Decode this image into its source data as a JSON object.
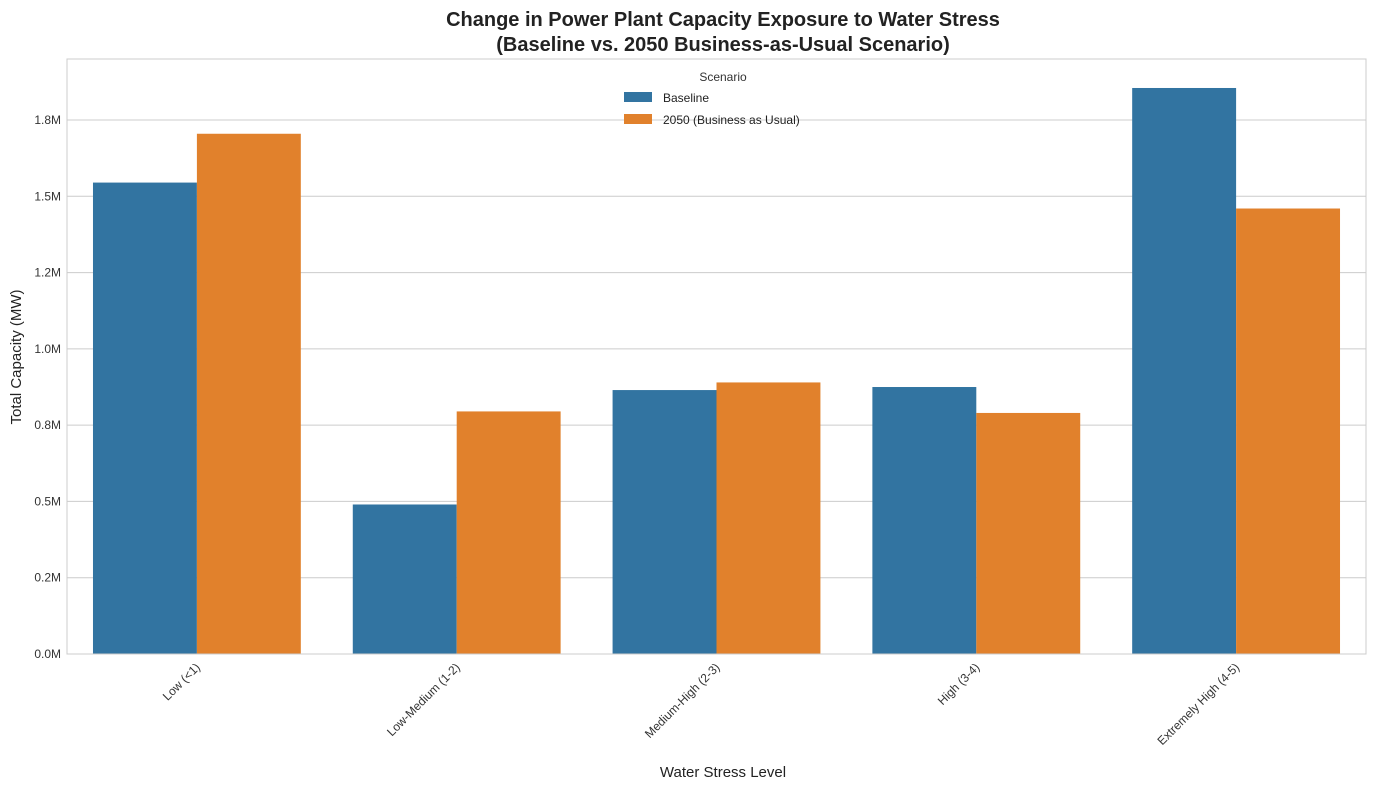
{
  "chart_data": {
    "type": "bar",
    "title": "Change in Power Plant Capacity Exposure to Water Stress",
    "subtitle": "(Baseline vs. 2050 Business-as-Usual Scenario)",
    "xlabel": "Water Stress Level",
    "ylabel": "Total Capacity (MW)",
    "categories": [
      "Low (<1)",
      "Low-Medium (1-2)",
      "Medium-High (2-3)",
      "High (3-4)",
      "Extremely High (4-5)"
    ],
    "series": [
      {
        "name": "Baseline",
        "color": "#3274a1",
        "values": [
          1545000,
          490000,
          865000,
          875000,
          1855000
        ]
      },
      {
        "name": "2050 (Business as Usual)",
        "color": "#e1812c",
        "values": [
          1705000,
          795000,
          890000,
          790000,
          1460000
        ]
      }
    ],
    "ylim": [
      0,
      1950000
    ],
    "yticks": [
      0,
      250000,
      500000,
      750000,
      1000000,
      1250000,
      1500000,
      1750000
    ],
    "ytick_labels": [
      "0.0M",
      "0.2M",
      "0.5M",
      "0.8M",
      "1.0M",
      "1.2M",
      "1.5M",
      "1.8M"
    ],
    "legend": {
      "title": "Scenario",
      "position": "upper-center"
    },
    "grid": true
  }
}
